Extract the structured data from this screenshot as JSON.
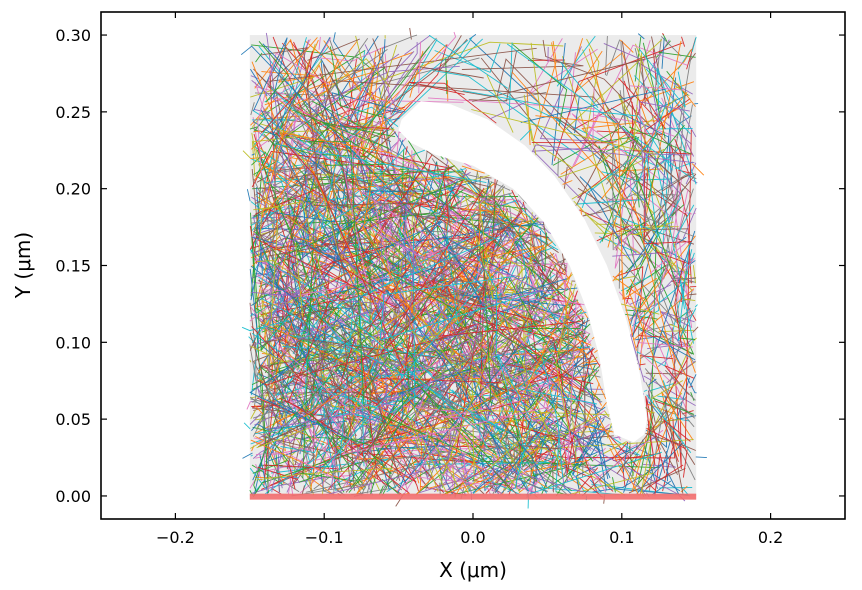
{
  "chart_data": {
    "type": "line",
    "title": "",
    "xlabel": "X (μm)",
    "ylabel": "Y (μm)",
    "xlim": [
      -0.25,
      0.25
    ],
    "ylim": [
      -0.015,
      0.315
    ],
    "x_ticks": [
      -0.2,
      -0.1,
      0.0,
      0.1,
      0.2
    ],
    "x_tick_labels": [
      "−0.2",
      "−0.1",
      "0.0",
      "0.1",
      "0.2"
    ],
    "y_ticks": [
      0.0,
      0.05,
      0.1,
      0.15,
      0.2,
      0.25,
      0.3
    ],
    "y_tick_labels": [
      "0.00",
      "0.05",
      "0.10",
      "0.15",
      "0.20",
      "0.25",
      "0.30"
    ],
    "grid": false,
    "legend": "none",
    "background_region": {
      "x": [
        -0.15,
        0.15
      ],
      "y": [
        0.0,
        0.3
      ],
      "color": "#ebebeb"
    },
    "substrate_band": {
      "x": [
        -0.15,
        0.15
      ],
      "y": [
        -0.002,
        0.002
      ],
      "color": "#f26d6d"
    },
    "void_region": {
      "color": "#ffffff",
      "outline": [
        [
          -0.048,
          0.245
        ],
        [
          -0.035,
          0.257
        ],
        [
          -0.015,
          0.255
        ],
        [
          0.01,
          0.245
        ],
        [
          0.035,
          0.228
        ],
        [
          0.055,
          0.208
        ],
        [
          0.075,
          0.18
        ],
        [
          0.09,
          0.15
        ],
        [
          0.103,
          0.115
        ],
        [
          0.112,
          0.08
        ],
        [
          0.117,
          0.05
        ],
        [
          0.115,
          0.04
        ],
        [
          0.108,
          0.035
        ],
        [
          0.095,
          0.04
        ],
        [
          0.09,
          0.06
        ],
        [
          0.085,
          0.09
        ],
        [
          0.077,
          0.12
        ],
        [
          0.065,
          0.15
        ],
        [
          0.048,
          0.178
        ],
        [
          0.027,
          0.2
        ],
        [
          0.0,
          0.215
        ],
        [
          -0.025,
          0.222
        ],
        [
          -0.042,
          0.23
        ],
        [
          -0.05,
          0.238
        ]
      ]
    },
    "trajectory_colors": [
      "#1f77b4",
      "#ff7f0e",
      "#2ca02c",
      "#d62728",
      "#9467bd",
      "#8c564b",
      "#e377c2",
      "#7f7f7f",
      "#bcbd22",
      "#17becf"
    ],
    "trajectory_count": 1800
  }
}
